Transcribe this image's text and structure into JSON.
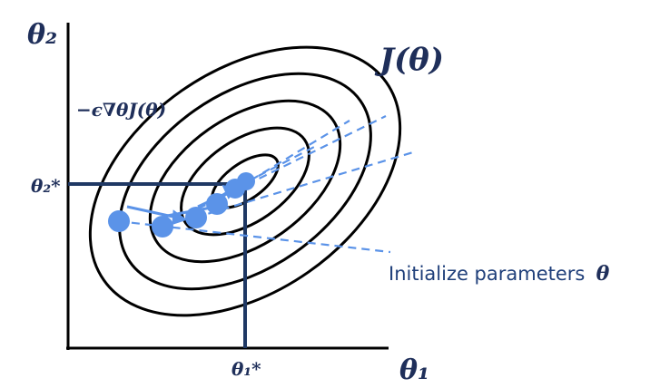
{
  "labels": {
    "y_axis": "θ₂",
    "x_axis": "θ₁",
    "objective": "J(θ)",
    "theta2_star": "θ₂*",
    "theta1_star": "θ₁*",
    "gradient_step": "−ϵ∇θJ(θ)",
    "init_text": "Initialize parameters",
    "init_symbol": "θ"
  },
  "colors": {
    "axis": "#000000",
    "contour": "#000000",
    "guide": "#1f3864",
    "point": "#5b93e8",
    "dashed": "#5b93e8",
    "label": "#1f2f5a",
    "annotation": "#1f3f7a"
  },
  "contours": {
    "count": 5,
    "rotation_deg": -35
  },
  "optimization_steps": 5
}
